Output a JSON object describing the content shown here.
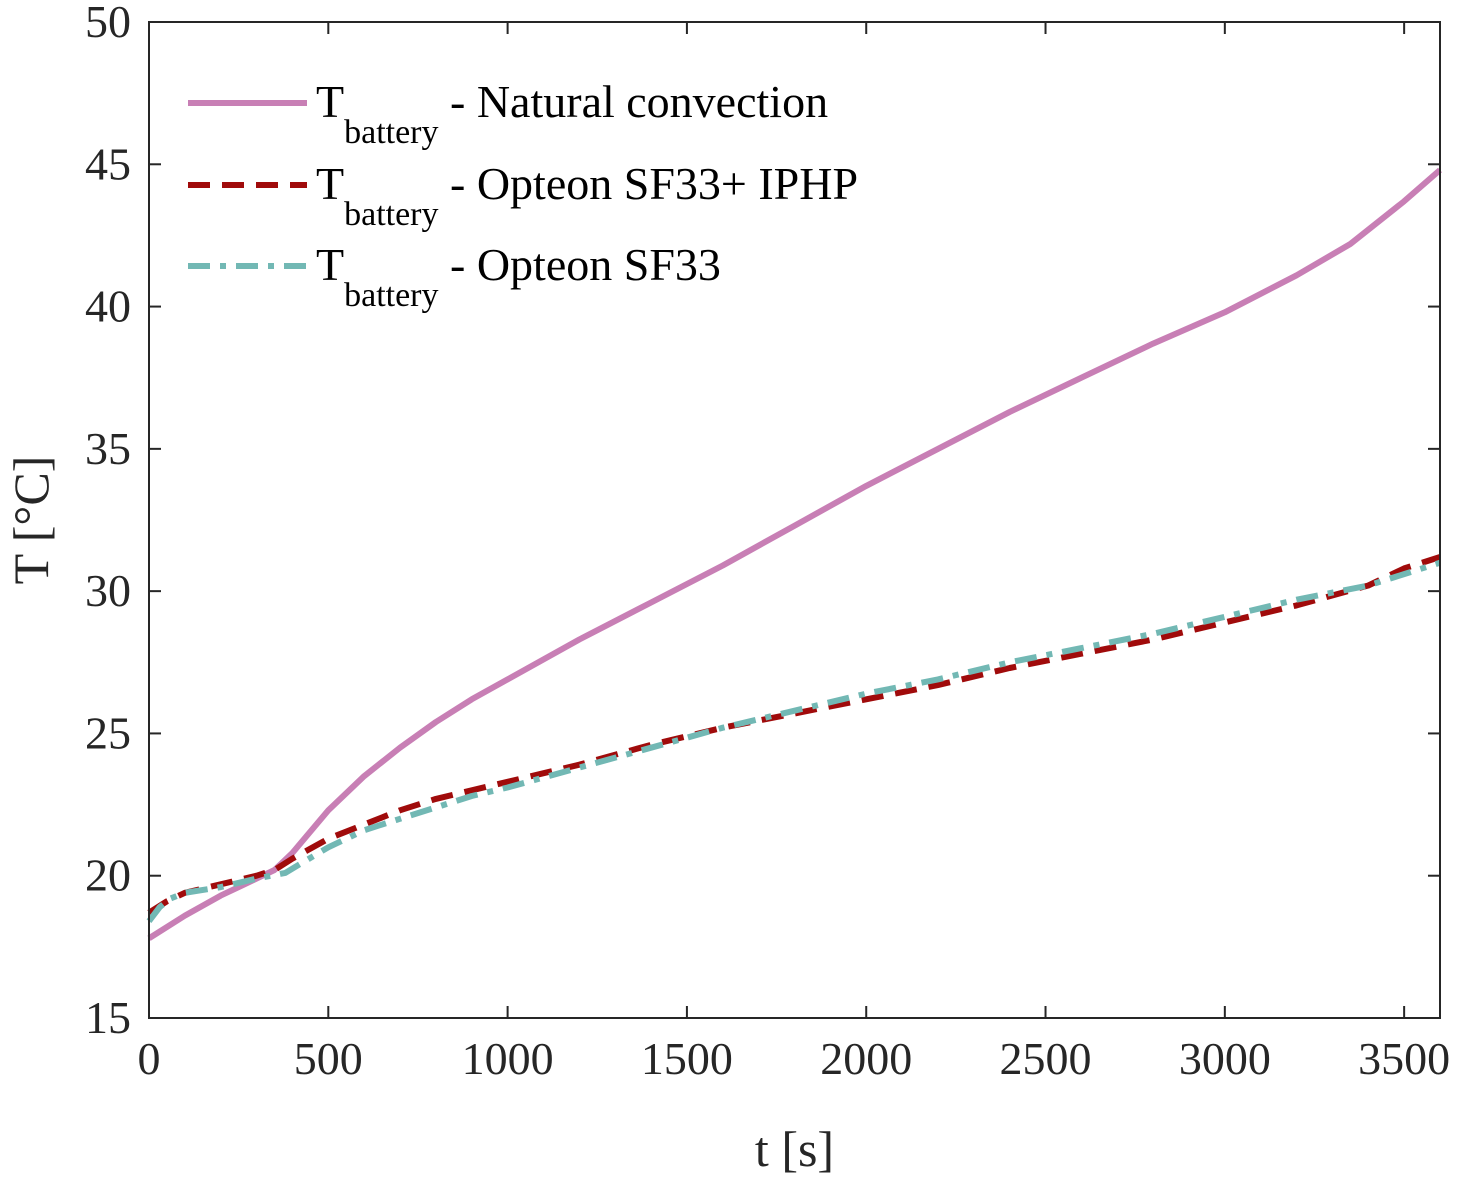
{
  "chart_data": {
    "type": "line",
    "title": "",
    "xlabel": "t [s]",
    "ylabel": "T [°C]",
    "xlim": [
      0,
      3600
    ],
    "ylim": [
      15,
      50
    ],
    "xticks": [
      0,
      500,
      1000,
      1500,
      2000,
      2500,
      3000,
      3500
    ],
    "yticks": [
      15,
      20,
      25,
      30,
      35,
      40,
      45,
      50
    ],
    "grid": false,
    "legend_position": "top-left",
    "series": [
      {
        "name": "Natural convection",
        "label_main": "T",
        "label_sub": "battery",
        "label_rest": " - Natural convection",
        "color": "#c87fb5",
        "style": "solid",
        "x": [
          0,
          100,
          200,
          300,
          350,
          400,
          500,
          600,
          700,
          800,
          900,
          1000,
          1200,
          1400,
          1600,
          1800,
          2000,
          2200,
          2400,
          2600,
          2800,
          3000,
          3200,
          3350,
          3500,
          3600
        ],
        "y": [
          17.8,
          18.6,
          19.3,
          19.9,
          20.2,
          20.8,
          22.3,
          23.5,
          24.5,
          25.4,
          26.2,
          26.9,
          28.3,
          29.6,
          30.9,
          32.3,
          33.7,
          35.0,
          36.3,
          37.5,
          38.7,
          39.8,
          41.1,
          42.2,
          43.7,
          44.8
        ]
      },
      {
        "name": "Opteon SF33+ IPHP",
        "label_main": "T",
        "label_sub": "battery",
        "label_rest": " - Opteon SF33+ IPHP",
        "color": "#a00b0b",
        "style": "dashed",
        "x": [
          0,
          50,
          100,
          200,
          300,
          350,
          400,
          500,
          600,
          700,
          800,
          900,
          1000,
          1200,
          1400,
          1600,
          1800,
          2000,
          2200,
          2400,
          2600,
          2800,
          3000,
          3200,
          3400,
          3500,
          3600
        ],
        "y": [
          18.7,
          19.1,
          19.4,
          19.7,
          20.0,
          20.2,
          20.6,
          21.3,
          21.8,
          22.3,
          22.7,
          23.0,
          23.3,
          23.9,
          24.6,
          25.2,
          25.7,
          26.2,
          26.7,
          27.3,
          27.8,
          28.3,
          28.9,
          29.5,
          30.2,
          30.8,
          31.2
        ]
      },
      {
        "name": "Opteon SF33",
        "label_main": "T",
        "label_sub": "battery",
        "label_rest": " - Opteon SF33",
        "color": "#72b8b4",
        "style": "dashdot",
        "x": [
          0,
          30,
          60,
          100,
          200,
          300,
          380,
          420,
          500,
          600,
          700,
          800,
          900,
          1000,
          1200,
          1400,
          1600,
          1800,
          2000,
          2200,
          2400,
          2600,
          2800,
          3000,
          3200,
          3400,
          3500,
          3600
        ],
        "y": [
          18.4,
          18.9,
          19.2,
          19.4,
          19.6,
          19.9,
          20.1,
          20.4,
          21.0,
          21.6,
          22.0,
          22.4,
          22.8,
          23.1,
          23.8,
          24.5,
          25.2,
          25.8,
          26.4,
          26.9,
          27.5,
          28.0,
          28.5,
          29.1,
          29.7,
          30.2,
          30.6,
          31.0
        ]
      }
    ]
  }
}
